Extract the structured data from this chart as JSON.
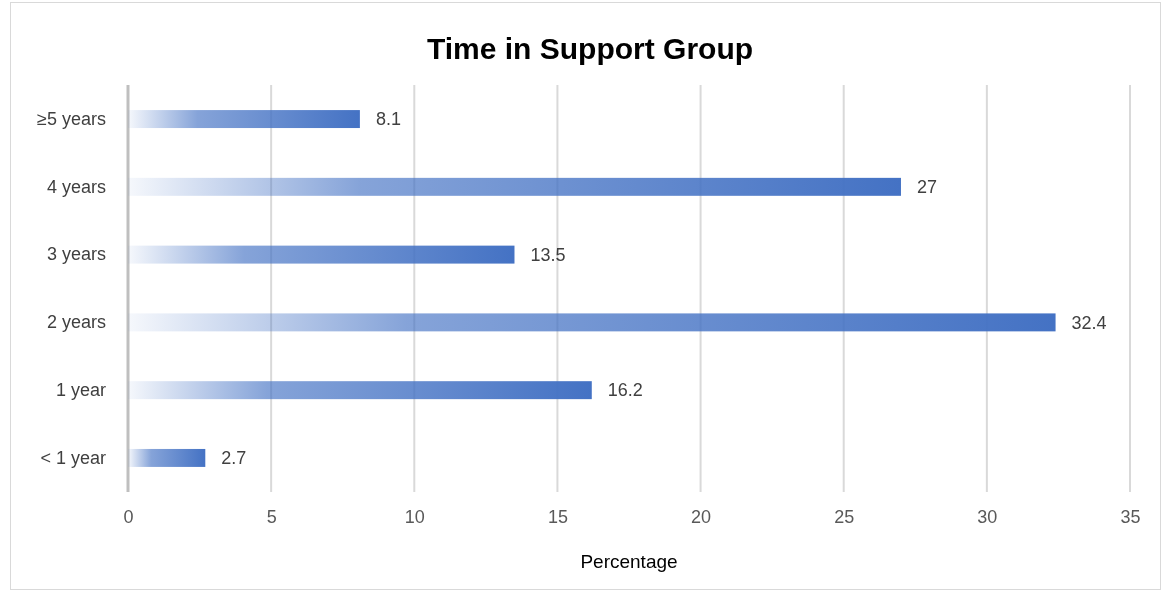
{
  "chart_data": {
    "type": "bar",
    "orientation": "horizontal",
    "title": "Time in Support Group",
    "xlabel": "Percentage",
    "categories": [
      "≥5 years",
      "4 years",
      "3 years",
      "2 years",
      "1 year",
      "< 1 year"
    ],
    "values": [
      8.1,
      27,
      13.5,
      32.4,
      16.2,
      2.7
    ],
    "color": "#4472c4",
    "xlim": [
      0,
      35
    ],
    "xticks": [
      0,
      5,
      10,
      15,
      20,
      25,
      30,
      35
    ],
    "grid": "x",
    "data_labels": true
  }
}
